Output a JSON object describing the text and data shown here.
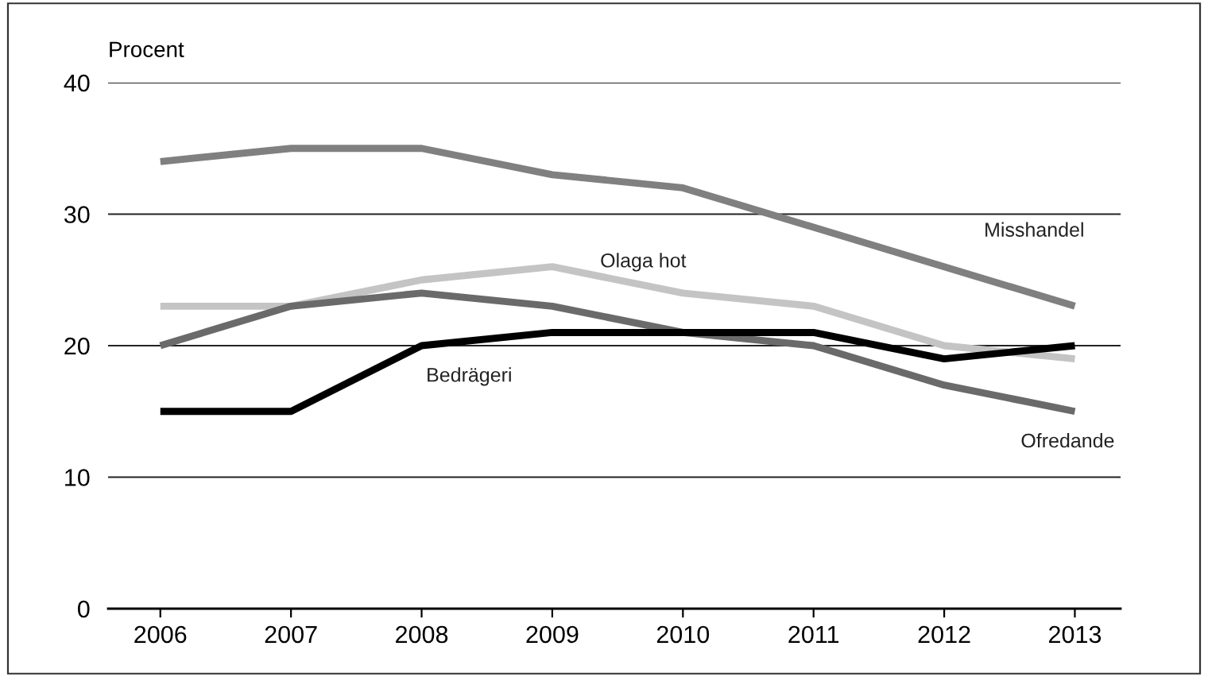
{
  "chart_data": {
    "type": "line",
    "ylabel": "Procent",
    "x": [
      2006,
      2007,
      2008,
      2009,
      2010,
      2011,
      2012,
      2013
    ],
    "series": [
      {
        "name": "Misshandel",
        "color": "#808080",
        "values": [
          34,
          35,
          35,
          33,
          32,
          29,
          26,
          23
        ]
      },
      {
        "name": "Olaga hot",
        "color": "#c4c4c4",
        "values": [
          23,
          23,
          25,
          26,
          24,
          23,
          20,
          19
        ]
      },
      {
        "name": "Ofredande",
        "color": "#6a6a6a",
        "values": [
          20,
          23,
          24,
          23,
          21,
          20,
          17,
          15
        ]
      },
      {
        "name": "Bedrägeri",
        "color": "#000000",
        "values": [
          15,
          15,
          20,
          21,
          21,
          21,
          19,
          20
        ]
      }
    ],
    "xlim": [
      2005.6,
      2013.35
    ],
    "xticks": [
      2006,
      2007,
      2008,
      2009,
      2010,
      2011,
      2012,
      2013
    ],
    "ylim": [
      0,
      40
    ],
    "yticks": [
      0,
      10,
      20,
      30,
      40
    ],
    "grid": "y",
    "legend": false,
    "marker": "none",
    "line_style": "solid"
  }
}
